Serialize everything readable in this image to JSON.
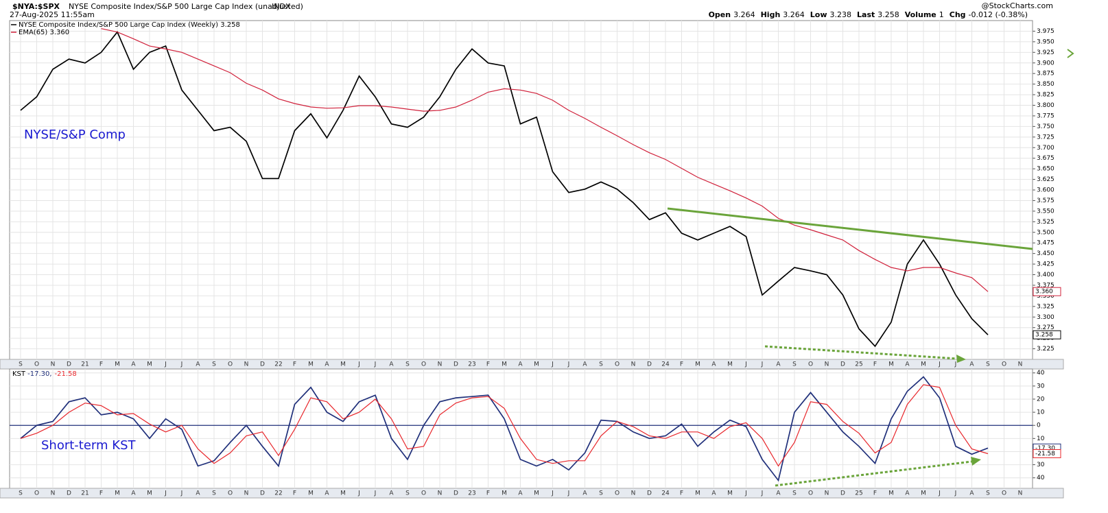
{
  "header": {
    "symbol": "$NYA:$SPX",
    "description": "NYSE Composite Index/S&P 500 Large Cap Index (unadjusted)",
    "exchange": "INDX",
    "timestamp": "27-Aug-2025 11:55am",
    "source": "@StockCharts.com",
    "quote": [
      {
        "label": "Open",
        "value": "3.264"
      },
      {
        "label": "High",
        "value": "3.264"
      },
      {
        "label": "Low",
        "value": "3.238"
      },
      {
        "label": "Last",
        "value": "3.258"
      },
      {
        "label": "Volume",
        "value": "1"
      },
      {
        "label": "Chg",
        "value": "-0.012 (-0.38%)"
      }
    ]
  },
  "chart_data": [
    {
      "type": "line",
      "annotation": "NYSE/S&P Comp",
      "grid": true,
      "categories": [
        "S",
        "O",
        "N",
        "D",
        "21",
        "F",
        "M",
        "A",
        "M",
        "J",
        "J",
        "A",
        "S",
        "O",
        "N",
        "D",
        "22",
        "F",
        "M",
        "A",
        "M",
        "J",
        "J",
        "A",
        "S",
        "O",
        "N",
        "D",
        "23",
        "F",
        "M",
        "A",
        "M",
        "J",
        "J",
        "A",
        "S",
        "O",
        "N",
        "D",
        "24",
        "F",
        "M",
        "A",
        "M",
        "J",
        "J",
        "A",
        "S",
        "O",
        "N",
        "D",
        "25",
        "F",
        "M",
        "A",
        "M",
        "J",
        "J",
        "A",
        "S",
        "O",
        "N"
      ],
      "series": [
        {
          "name": "NYSE Composite Index/S&P 500 Large Cap Index (Weekly) 3.258",
          "color": "#000000",
          "end_label": "3.258",
          "values": [
            3.788,
            3.82,
            3.885,
            3.909,
            3.9,
            3.925,
            3.973,
            3.885,
            3.925,
            3.94,
            3.836,
            3.788,
            3.74,
            3.748,
            3.715,
            3.627,
            3.627,
            3.74,
            3.78,
            3.723,
            3.788,
            3.869,
            3.82,
            3.756,
            3.748,
            3.772,
            3.82,
            3.885,
            3.933,
            3.9,
            3.893,
            3.756,
            3.772,
            3.643,
            3.594,
            3.602,
            3.619,
            3.602,
            3.57,
            3.53,
            3.546,
            3.498,
            3.482,
            3.498,
            3.514,
            3.49,
            3.352,
            3.385,
            3.417,
            3.409,
            3.4,
            3.352,
            3.272,
            3.231,
            3.288,
            3.425,
            3.482,
            3.425,
            3.352,
            3.296,
            3.258,
            null,
            null
          ]
        },
        {
          "name": "EMA(65) 3.360",
          "color": "#d0203a",
          "end_label": "3.360",
          "values": [
            null,
            null,
            null,
            null,
            null,
            3.981,
            3.973,
            3.957,
            3.94,
            3.933,
            3.925,
            3.909,
            3.893,
            3.877,
            3.852,
            3.836,
            3.815,
            3.804,
            3.796,
            3.793,
            3.794,
            3.799,
            3.799,
            3.796,
            3.791,
            3.786,
            3.788,
            3.796,
            3.812,
            3.831,
            3.839,
            3.836,
            3.828,
            3.812,
            3.788,
            3.769,
            3.748,
            3.728,
            3.707,
            3.688,
            3.672,
            3.651,
            3.63,
            3.614,
            3.598,
            3.581,
            3.562,
            3.533,
            3.517,
            3.506,
            3.494,
            3.482,
            3.457,
            3.436,
            3.417,
            3.409,
            3.417,
            3.417,
            3.404,
            3.393,
            3.36,
            null,
            null
          ]
        }
      ],
      "ylim": [
        3.2,
        4.0
      ],
      "yticks": [
        3.225,
        {
          "value": 3.25,
          "label": "3.250"
        },
        3.275,
        {
          "value": 3.3,
          "label": "3.300"
        },
        3.325,
        {
          "value": 3.35,
          "label": "3.350"
        },
        3.375,
        {
          "value": 3.4,
          "label": "3.400"
        },
        3.425,
        {
          "value": 3.45,
          "label": "3.450"
        },
        3.475,
        {
          "value": 3.5,
          "label": "3.500"
        },
        3.525,
        {
          "value": 3.55,
          "label": "3.550"
        },
        3.575,
        {
          "value": 3.6,
          "label": "3.600"
        },
        3.625,
        {
          "value": 3.65,
          "label": "3.650"
        },
        3.675,
        {
          "value": 3.7,
          "label": "3.700"
        },
        3.725,
        {
          "value": 3.75,
          "label": "3.750"
        },
        3.775,
        {
          "value": 3.8,
          "label": "3.800"
        },
        3.825,
        {
          "value": 3.85,
          "label": "3.850"
        },
        3.875,
        {
          "value": 3.9,
          "label": "3.900"
        },
        3.925,
        {
          "value": 3.95,
          "label": "3.950"
        },
        3.975
      ]
    },
    {
      "type": "line",
      "annotation": "Short-term KST",
      "legend_title": "KST",
      "grid": true,
      "categories": [
        "S",
        "O",
        "N",
        "D",
        "21",
        "F",
        "M",
        "A",
        "M",
        "J",
        "J",
        "A",
        "S",
        "O",
        "N",
        "D",
        "22",
        "F",
        "M",
        "A",
        "M",
        "J",
        "J",
        "A",
        "S",
        "O",
        "N",
        "D",
        "23",
        "F",
        "M",
        "A",
        "M",
        "J",
        "J",
        "A",
        "S",
        "O",
        "N",
        "D",
        "24",
        "F",
        "M",
        "A",
        "M",
        "J",
        "J",
        "A",
        "S",
        "O",
        "N",
        "D",
        "25",
        "F",
        "M",
        "A",
        "M",
        "J",
        "J",
        "A",
        "S",
        "O",
        "N"
      ],
      "series": [
        {
          "name": "-17.30,",
          "color": "#1f2f7a",
          "end_label": "-17.30",
          "values": [
            -10,
            0,
            3,
            18,
            21,
            8,
            10,
            5,
            -10,
            5,
            -3,
            -31,
            -27,
            -13,
            0,
            -16,
            -31,
            16,
            29,
            10,
            3,
            18,
            23,
            -10,
            -26,
            0,
            18,
            21,
            22,
            23,
            5,
            -26,
            -31,
            -26,
            -34,
            -21,
            4,
            3,
            -5,
            -10,
            -8,
            1,
            -16,
            -5,
            4,
            -1,
            -26,
            -42,
            10,
            25,
            10,
            -5,
            -16,
            -29,
            5,
            26,
            37,
            21,
            -16,
            -22,
            -17.3,
            null,
            null
          ]
        },
        {
          "name": "-21.58",
          "color": "#e8262b",
          "end_label": "-21.58",
          "values": [
            -10,
            -6,
            0,
            10,
            17,
            15,
            8,
            9,
            1,
            -5,
            0,
            -18,
            -29,
            -21,
            -8,
            -5,
            -23,
            -3,
            21,
            18,
            5,
            10,
            20,
            5,
            -18,
            -16,
            8,
            17,
            21,
            22,
            13,
            -10,
            -26,
            -29,
            -27,
            -27,
            -8,
            3,
            -1,
            -8,
            -10,
            -5,
            -5,
            -10,
            -1,
            2,
            -10,
            -31,
            -13,
            18,
            16,
            3,
            -6,
            -21,
            -13,
            16,
            31,
            29,
            0,
            -18,
            -21.58,
            null,
            null
          ]
        }
      ],
      "ylim": [
        -48,
        43
      ],
      "yticks": [
        40,
        30,
        20,
        10,
        0,
        {
          "value": -10,
          "label": "10"
        },
        {
          "value": -20,
          "label": "20"
        },
        {
          "value": -30,
          "label": "30"
        },
        {
          "value": -40,
          "label": "40"
        }
      ]
    }
  ]
}
